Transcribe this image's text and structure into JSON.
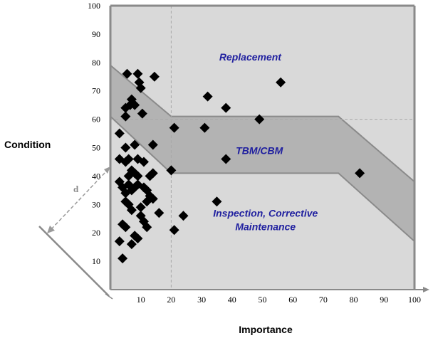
{
  "chart_data": {
    "type": "scatter",
    "xlabel": "Importance",
    "ylabel": "Condition",
    "xlim": [
      0,
      100
    ],
    "ylim": [
      0,
      100
    ],
    "x_ticks": [
      "10",
      "20",
      "30",
      "40",
      "50",
      "60",
      "70",
      "80",
      "90",
      "100"
    ],
    "y_ticks": [
      "10",
      "20",
      "30",
      "40",
      "50",
      "60",
      "70",
      "80",
      "90",
      "100"
    ],
    "grid": false,
    "reference_lines": {
      "x": 20,
      "y": 60
    },
    "distance_label": "d",
    "regions": [
      {
        "name": "Replacement",
        "lines": [
          "Replacement"
        ],
        "anchor": [
          46,
          82
        ]
      },
      {
        "name": "TBM/CBM",
        "lines": [
          "TBM/CBM"
        ],
        "anchor": [
          49,
          49
        ]
      },
      {
        "name": "Inspection, Corrective Maintenance",
        "lines": [
          "Inspection, Corrective",
          "Maintenance"
        ],
        "anchor": [
          51,
          27
        ]
      }
    ],
    "band": {
      "upper": [
        [
          0,
          79
        ],
        [
          20,
          61
        ],
        [
          75,
          61
        ],
        [
          100,
          38
        ]
      ],
      "lower": [
        [
          0,
          61
        ],
        [
          20,
          41
        ],
        [
          75,
          41
        ],
        [
          100,
          17
        ]
      ]
    },
    "points": [
      [
        5.5,
        76
      ],
      [
        9,
        76
      ],
      [
        9.5,
        73
      ],
      [
        10,
        71
      ],
      [
        14.5,
        75
      ],
      [
        6.5,
        65
      ],
      [
        7,
        67
      ],
      [
        8,
        65
      ],
      [
        5,
        64
      ],
      [
        10.5,
        62
      ],
      [
        5,
        61
      ],
      [
        3,
        55
      ],
      [
        5,
        50
      ],
      [
        8,
        51
      ],
      [
        14,
        51
      ],
      [
        3,
        46
      ],
      [
        5,
        45
      ],
      [
        6,
        46
      ],
      [
        9,
        46
      ],
      [
        11,
        45
      ],
      [
        7,
        42
      ],
      [
        8,
        41
      ],
      [
        6,
        40
      ],
      [
        9,
        40
      ],
      [
        14,
        41
      ],
      [
        13,
        40
      ],
      [
        20,
        42
      ],
      [
        3,
        38
      ],
      [
        4,
        36
      ],
      [
        5,
        34
      ],
      [
        6,
        37
      ],
      [
        7,
        35
      ],
      [
        8,
        36
      ],
      [
        9,
        37
      ],
      [
        11,
        36
      ],
      [
        12,
        35
      ],
      [
        5,
        31
      ],
      [
        6,
        30
      ],
      [
        7,
        28
      ],
      [
        10,
        29
      ],
      [
        12,
        31
      ],
      [
        13,
        33
      ],
      [
        14,
        32
      ],
      [
        16,
        27
      ],
      [
        4,
        23
      ],
      [
        5,
        22
      ],
      [
        10,
        26
      ],
      [
        11,
        24
      ],
      [
        12,
        22
      ],
      [
        8,
        19
      ],
      [
        9,
        18
      ],
      [
        3,
        17
      ],
      [
        7,
        16
      ],
      [
        4,
        11
      ],
      [
        21,
        57
      ],
      [
        21,
        21
      ],
      [
        24,
        26
      ],
      [
        31,
        57
      ],
      [
        32,
        68
      ],
      [
        35,
        31
      ],
      [
        38,
        64
      ],
      [
        38,
        46
      ],
      [
        49,
        60
      ],
      [
        56,
        73
      ],
      [
        82,
        41
      ]
    ]
  }
}
